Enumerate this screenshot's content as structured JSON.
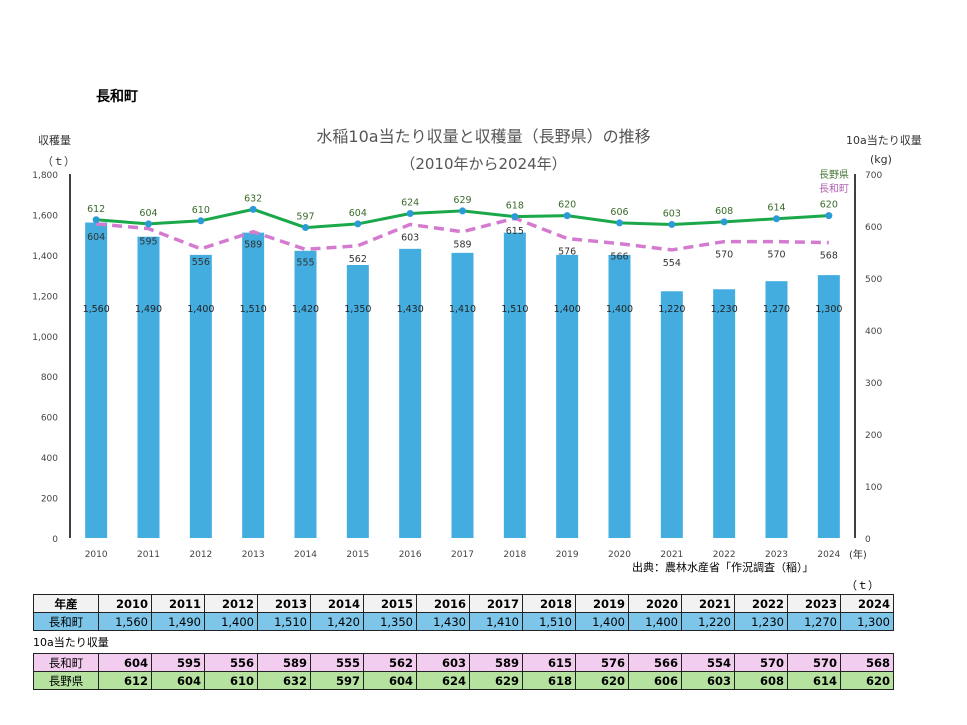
{
  "page": {
    "town_heading": "長和町"
  },
  "chart_data": {
    "type": "bar+line",
    "title": "水稲10a当たり収量と収穫量（長野県）の推移",
    "subtitle": "（2010年から2024年）",
    "ylabel_left": "収穫量",
    "ylabel_left_unit": "（ｔ）",
    "ylabel_right": "10a当たり収量",
    "ylabel_right_unit": "(kg)",
    "xlabel_unit": "(年)",
    "ylim_left": [
      0,
      1800
    ],
    "ylim_right": [
      0,
      700
    ],
    "left_ticks": [
      "0",
      "200",
      "400",
      "600",
      "800",
      "1,000",
      "1,200",
      "1,400",
      "1,600",
      "1,800"
    ],
    "right_ticks": [
      "0",
      "100",
      "200",
      "300",
      "400",
      "500",
      "600",
      "700"
    ],
    "categories": [
      "2010",
      "2011",
      "2012",
      "2013",
      "2014",
      "2015",
      "2016",
      "2017",
      "2018",
      "2019",
      "2020",
      "2021",
      "2022",
      "2023",
      "2024"
    ],
    "series": [
      {
        "name": "長和町 収穫量",
        "type": "bar",
        "axis": "left",
        "color": "#43ade0",
        "values": [
          1560,
          1490,
          1400,
          1510,
          1420,
          1350,
          1430,
          1410,
          1510,
          1400,
          1400,
          1220,
          1230,
          1270,
          1300
        ],
        "labels": [
          "1,560",
          "1,490",
          "1,400",
          "1,510",
          "1,420",
          "1,350",
          "1,430",
          "1,410",
          "1,510",
          "1,400",
          "1,400",
          "1,220",
          "1,230",
          "1,270",
          "1,300"
        ]
      },
      {
        "name": "長野県",
        "type": "line",
        "axis": "right",
        "color": "#1aa84a",
        "marker_color": "#2b9bd6",
        "values": [
          612,
          604,
          610,
          632,
          597,
          604,
          624,
          629,
          618,
          620,
          606,
          603,
          608,
          614,
          620
        ]
      },
      {
        "name": "長和町",
        "type": "line-dashed",
        "axis": "right",
        "color": "#d47bd0",
        "values": [
          604,
          595,
          556,
          589,
          555,
          562,
          603,
          589,
          615,
          576,
          566,
          554,
          570,
          570,
          568
        ]
      }
    ],
    "legend": [
      "長野県",
      "長和町"
    ],
    "source": "出典：農林水産省「作況調査（稲）」"
  },
  "table": {
    "unit": "（ｔ）",
    "header_label": "年産",
    "years": [
      "2010",
      "2011",
      "2012",
      "2013",
      "2014",
      "2015",
      "2016",
      "2017",
      "2018",
      "2019",
      "2020",
      "2021",
      "2022",
      "2023",
      "2024"
    ],
    "harvest": {
      "label": "長和町",
      "values": [
        "1,560",
        "1,490",
        "1,400",
        "1,510",
        "1,420",
        "1,350",
        "1,430",
        "1,410",
        "1,510",
        "1,400",
        "1,400",
        "1,220",
        "1,230",
        "1,270",
        "1,300"
      ]
    },
    "yield_title": "10a当たり収量",
    "yield_town": {
      "label": "長和町",
      "values": [
        "604",
        "595",
        "556",
        "589",
        "555",
        "562",
        "603",
        "589",
        "615",
        "576",
        "566",
        "554",
        "570",
        "570",
        "568"
      ]
    },
    "yield_pref": {
      "label": "長野県",
      "values": [
        "612",
        "604",
        "610",
        "632",
        "597",
        "604",
        "624",
        "629",
        "618",
        "620",
        "606",
        "603",
        "608",
        "614",
        "620"
      ]
    }
  }
}
